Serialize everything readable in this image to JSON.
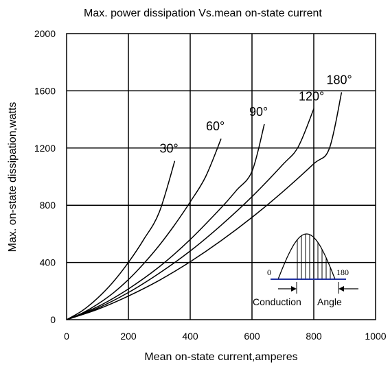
{
  "chart_data": {
    "type": "line",
    "title": "Max. power dissipation Vs.mean on-state current",
    "xlabel": "Mean on-state current,amperes",
    "ylabel": "Max. on-state dissipation,watts",
    "xlim": [
      0,
      1000
    ],
    "ylim": [
      0,
      2000
    ],
    "x_ticks": [
      "0",
      "200",
      "400",
      "600",
      "800",
      "1000"
    ],
    "y_ticks": [
      "0",
      "400",
      "800",
      "1200",
      "1600",
      "2000"
    ],
    "x_tick_values": [
      0,
      200,
      400,
      600,
      800,
      1000
    ],
    "y_tick_values": [
      0,
      400,
      800,
      1200,
      1600,
      2000
    ],
    "grid": true,
    "series": [
      {
        "name": "30°",
        "points": [
          [
            0,
            0
          ],
          [
            50,
            62
          ],
          [
            100,
            150
          ],
          [
            150,
            262
          ],
          [
            200,
            400
          ],
          [
            250,
            562
          ],
          [
            300,
            752
          ],
          [
            350,
            1110
          ]
        ]
      },
      {
        "name": "60°",
        "points": [
          [
            0,
            0
          ],
          [
            50,
            45
          ],
          [
            100,
            108
          ],
          [
            150,
            185
          ],
          [
            200,
            280
          ],
          [
            250,
            393
          ],
          [
            300,
            520
          ],
          [
            350,
            664
          ],
          [
            400,
            823
          ],
          [
            450,
            1000
          ],
          [
            500,
            1265
          ]
        ]
      },
      {
        "name": "90°",
        "points": [
          [
            0,
            0
          ],
          [
            100,
            90
          ],
          [
            200,
            215
          ],
          [
            300,
            370
          ],
          [
            400,
            560
          ],
          [
            500,
            782
          ],
          [
            550,
            905
          ],
          [
            600,
            1037
          ],
          [
            640,
            1367
          ]
        ]
      },
      {
        "name": "120°",
        "points": [
          [
            0,
            0
          ],
          [
            100,
            80
          ],
          [
            200,
            190
          ],
          [
            300,
            325
          ],
          [
            400,
            480
          ],
          [
            500,
            660
          ],
          [
            600,
            860
          ],
          [
            700,
            1085
          ],
          [
            750,
            1210
          ],
          [
            800,
            1475
          ]
        ]
      },
      {
        "name": "180°",
        "points": [
          [
            0,
            0
          ],
          [
            100,
            72
          ],
          [
            200,
            165
          ],
          [
            300,
            275
          ],
          [
            400,
            405
          ],
          [
            500,
            552
          ],
          [
            600,
            715
          ],
          [
            700,
            895
          ],
          [
            800,
            1090
          ],
          [
            850,
            1195
          ],
          [
            890,
            1590
          ]
        ]
      }
    ],
    "annotation": {
      "left_label": "0",
      "right_label": "180",
      "caption_left": "Conduction",
      "caption_right": "Angle"
    }
  }
}
